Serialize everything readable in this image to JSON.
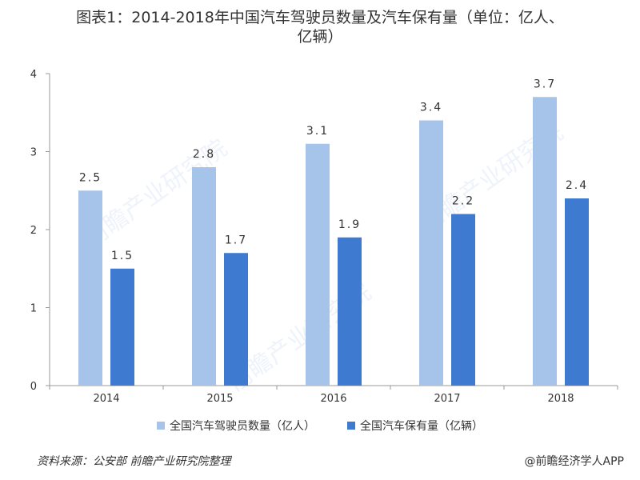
{
  "title_line1": "图表1：2014-2018年中国汽车驾驶员数量及汽车保有量（单位：亿人、",
  "title_line2": "亿辆）",
  "chart_data": {
    "type": "bar",
    "categories": [
      "2014",
      "2015",
      "2016",
      "2017",
      "2018"
    ],
    "series": [
      {
        "name": "全国汽车驾驶员数量（亿人）",
        "values": [
          2.5,
          2.8,
          3.1,
          3.4,
          3.7
        ],
        "color": "#a6c4ea",
        "labels": [
          "2.5",
          "2.8",
          "3.1",
          "3.4",
          "3.7"
        ]
      },
      {
        "name": "全国汽车保有量（亿辆）",
        "values": [
          1.5,
          1.7,
          1.9,
          2.2,
          2.4
        ],
        "color": "#3f7ad1",
        "labels": [
          "1.5",
          "1.7",
          "1.9",
          "2.2",
          "2.4"
        ]
      }
    ],
    "yticks": [
      "0",
      "1",
      "2",
      "3",
      "4"
    ],
    "ylim": [
      0,
      4
    ],
    "grid": false,
    "legend": "bottom"
  },
  "footer": {
    "source": "资料来源：公安部 前瞻产业研究院整理",
    "credit": "@前瞻经济学人APP"
  },
  "watermark": {
    "text": "前瞻产业研究院",
    "color": "#eef3fb"
  }
}
